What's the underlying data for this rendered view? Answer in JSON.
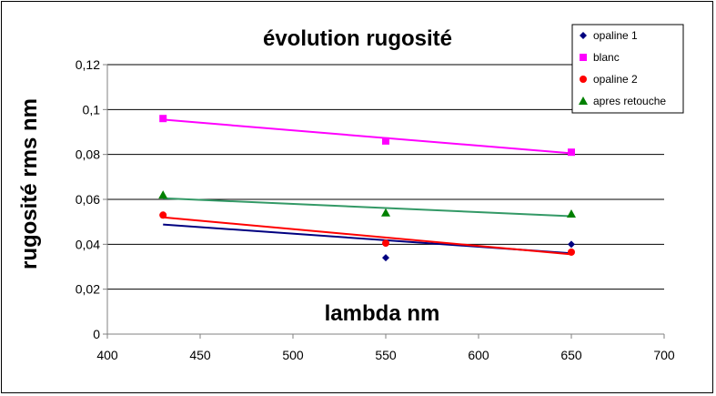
{
  "chart_data": {
    "type": "scatter",
    "title": "évolution rugosité",
    "xlabel": "lambda nm",
    "ylabel": "rugosité rms nm",
    "xlim": [
      400,
      700
    ],
    "ylim": [
      0,
      0.12
    ],
    "x_ticks": [
      400,
      450,
      500,
      550,
      600,
      650,
      700
    ],
    "y_ticks": [
      0,
      0.02,
      0.04,
      0.06,
      0.08,
      0.1,
      0.12
    ],
    "x_tick_labels": [
      "400",
      "450",
      "500",
      "550",
      "600",
      "650",
      "700"
    ],
    "y_tick_labels": [
      "0",
      "0,02",
      "0,04",
      "0,06",
      "0,08",
      "0,1",
      "0,12"
    ],
    "grid": "horizontal",
    "legend_position": "top-right",
    "series": [
      {
        "name": "opaline 1",
        "color": "#000080",
        "marker": "diamond",
        "x": [
          430,
          550,
          650
        ],
        "y": [
          0.053,
          0.034,
          0.04
        ],
        "trendline": [
          [
            430,
            0.0488
          ],
          [
            650,
            0.036
          ]
        ]
      },
      {
        "name": "blanc",
        "color": "#ff00ff",
        "marker": "square",
        "x": [
          430,
          550,
          650
        ],
        "y": [
          0.096,
          0.086,
          0.081
        ],
        "trendline": [
          [
            430,
            0.0955
          ],
          [
            650,
            0.0805
          ]
        ]
      },
      {
        "name": "opaline 2",
        "color": "#ff0000",
        "marker": "circle",
        "x": [
          430,
          550,
          650
        ],
        "y": [
          0.053,
          0.0405,
          0.0365
        ],
        "trendline": [
          [
            430,
            0.052
          ],
          [
            650,
            0.0355
          ]
        ]
      },
      {
        "name": "apres retouche",
        "color": "#008000",
        "marker": "triangle",
        "x": [
          430,
          550,
          650
        ],
        "y": [
          0.062,
          0.054,
          0.0535
        ],
        "trendline": [
          [
            430,
            0.0605
          ],
          [
            650,
            0.0525
          ]
        ],
        "trendline_color": "#339966"
      }
    ]
  }
}
